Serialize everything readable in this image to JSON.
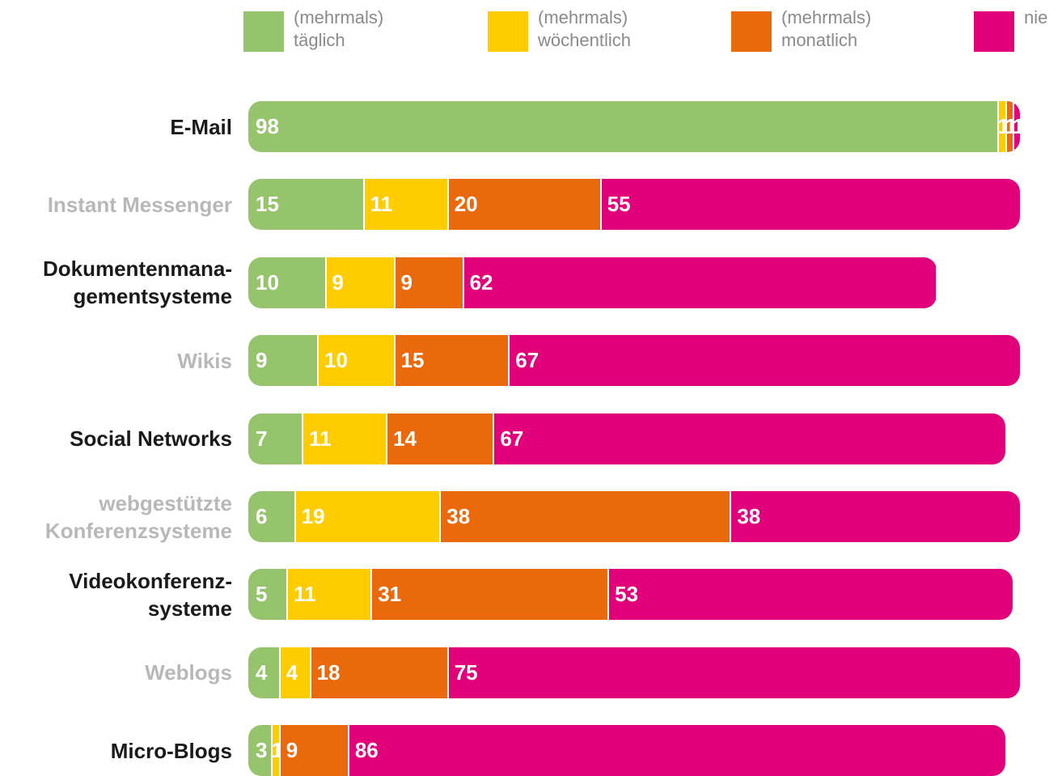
{
  "chart_data": {
    "type": "bar",
    "orientation": "horizontal",
    "stacked": true,
    "categories": [
      "E-Mail",
      "Instant Messenger",
      "Dokumentenmana-\ngementsysteme",
      "Wikis",
      "Social Networks",
      "webgestützte\nKonferenzsysteme",
      "Videokonferenz-\nsysteme",
      "Weblogs",
      "Micro-Blogs"
    ],
    "series": [
      {
        "name": "(mehrmals)\ntäglich",
        "color": "#95c46c",
        "values": [
          98,
          15,
          10,
          9,
          7,
          6,
          5,
          4,
          3
        ]
      },
      {
        "name": "(mehrmals)\nwöchentlich",
        "color": "#ffcc00",
        "values": [
          1,
          11,
          9,
          10,
          11,
          19,
          11,
          4,
          1
        ]
      },
      {
        "name": "(mehrmals)\nmonatlich",
        "color": "#ea690b",
        "values": [
          1,
          20,
          9,
          15,
          14,
          38,
          31,
          18,
          9
        ]
      },
      {
        "name": "nie",
        "color": "#e2007a",
        "values": [
          1,
          55,
          62,
          67,
          67,
          38,
          53,
          75,
          86
        ]
      }
    ],
    "legend": "top"
  }
}
